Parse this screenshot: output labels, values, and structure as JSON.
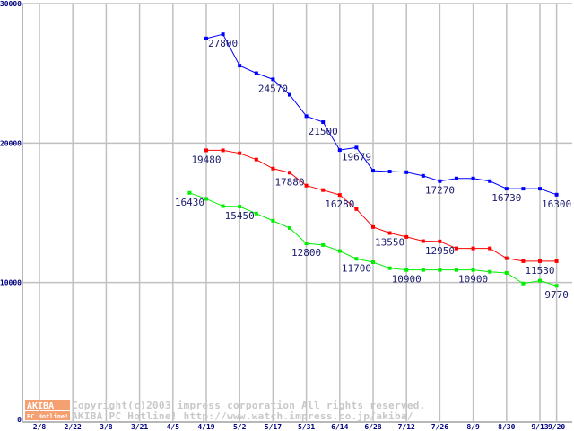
{
  "chart_data": {
    "type": "line",
    "title": "",
    "xlabel": "",
    "ylabel": "",
    "ylim": [
      0,
      30000
    ],
    "yticks": [
      "0",
      "10000",
      "20000",
      "30000"
    ],
    "x_tick_labels": [
      "2/8",
      "2/22",
      "3/8",
      "3/21",
      "4/5",
      "4/19",
      "5/2",
      "5/17",
      "5/31",
      "6/14",
      "6/28",
      "7/12",
      "7/26",
      "8/9",
      "8/30",
      "9/13",
      "9/20"
    ],
    "x_tick_weeks": [
      0,
      2,
      4,
      6,
      8,
      10,
      12,
      14,
      16,
      18,
      20,
      22,
      24,
      26,
      28,
      30,
      31
    ],
    "grid": true,
    "series": [
      {
        "name": "blue",
        "color": "#0000ff",
        "x": [
          10,
          11,
          12,
          13,
          14,
          15,
          16,
          17,
          18,
          19,
          20,
          21,
          22,
          23,
          24,
          25,
          26,
          27,
          28,
          29,
          30,
          31
        ],
        "values": [
          27500,
          27800,
          25550,
          25010,
          24570,
          23460,
          21930,
          21500,
          19500,
          19679,
          18020,
          17960,
          17910,
          17650,
          17270,
          17460,
          17460,
          17270,
          16730,
          16730,
          16730,
          16300
        ],
        "labels": [
          {
            "i": 1,
            "text": "27800"
          },
          {
            "i": 4,
            "text": "24570"
          },
          {
            "i": 7,
            "text": "21500"
          },
          {
            "i": 9,
            "text": "19679"
          },
          {
            "i": 14,
            "text": "17270"
          },
          {
            "i": 18,
            "text": "16730"
          },
          {
            "i": 21,
            "text": "16300"
          }
        ]
      },
      {
        "name": "red",
        "color": "#ff0000",
        "x": [
          10,
          11,
          12,
          13,
          14,
          15,
          16,
          17,
          18,
          19,
          20,
          21,
          22,
          23,
          24,
          25,
          26,
          27,
          28,
          29,
          30,
          31
        ],
        "values": [
          19480,
          19480,
          19270,
          18820,
          18170,
          17880,
          16950,
          16630,
          16280,
          15270,
          13980,
          13550,
          13270,
          12970,
          12950,
          12450,
          12450,
          12450,
          11740,
          11530,
          11530,
          11530
        ],
        "labels": [
          {
            "i": 0,
            "text": "19480"
          },
          {
            "i": 5,
            "text": "17880"
          },
          {
            "i": 8,
            "text": "16280"
          },
          {
            "i": 11,
            "text": "13550"
          },
          {
            "i": 14,
            "text": "12950"
          },
          {
            "i": 20,
            "text": "11530"
          }
        ]
      },
      {
        "name": "green",
        "color": "#00ee00",
        "x": [
          9,
          10,
          11,
          12,
          13,
          14,
          15,
          16,
          17,
          18,
          19,
          20,
          21,
          22,
          23,
          24,
          25,
          26,
          27,
          28,
          29,
          30,
          31
        ],
        "values": [
          16430,
          16000,
          15480,
          15450,
          14950,
          14430,
          13910,
          12800,
          12690,
          12260,
          11700,
          11460,
          11030,
          10900,
          10900,
          10900,
          10900,
          10900,
          10770,
          10690,
          9930,
          10130,
          9770
        ],
        "labels": [
          {
            "i": 0,
            "text": "16430"
          },
          {
            "i": 3,
            "text": "15450"
          },
          {
            "i": 7,
            "text": "12800"
          },
          {
            "i": 10,
            "text": "11700"
          },
          {
            "i": 13,
            "text": "10900"
          },
          {
            "i": 17,
            "text": "10900"
          },
          {
            "i": 22,
            "text": "9770"
          }
        ]
      }
    ]
  },
  "watermark": {
    "logo_top": "AKIBA",
    "logo_bottom": "PC Hotline!",
    "line1": "Copyright(c)2003 impress corporation All rights reserved.",
    "line2": "AKIBA PC Hotline!  http://www.watch.impress.co.jp/akiba/"
  }
}
